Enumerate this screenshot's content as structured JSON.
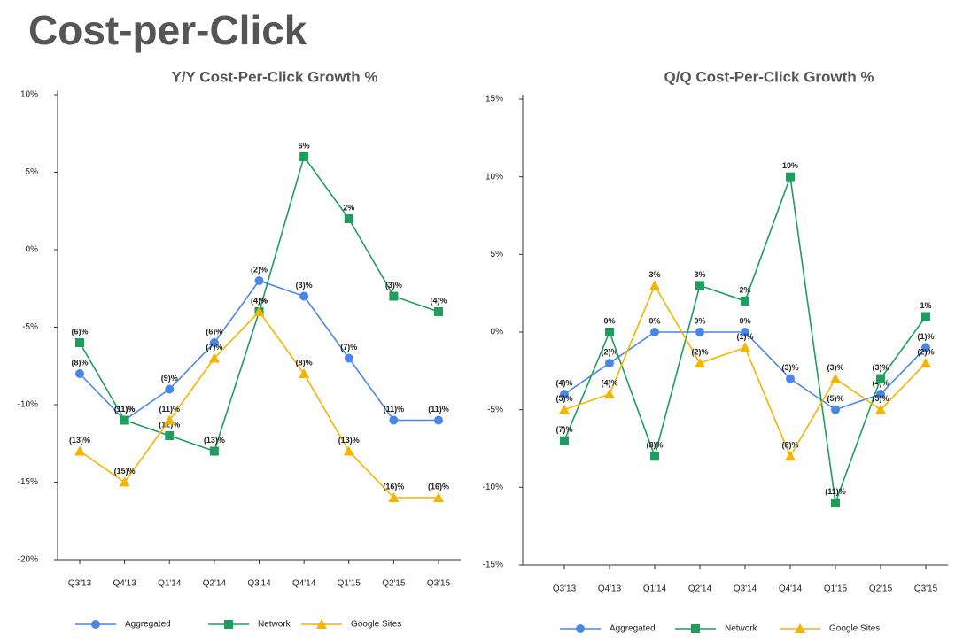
{
  "title": "Cost-per-Click",
  "chart_data": [
    {
      "type": "line",
      "title": "Y/Y Cost-Per-Click Growth %",
      "categories": [
        "Q3'13",
        "Q4'13",
        "Q1'14",
        "Q2'14",
        "Q3'14",
        "Q4'14",
        "Q1'15",
        "Q2'15",
        "Q3'15"
      ],
      "ylim": [
        -20,
        10
      ],
      "yticks": [
        {
          "value": 10,
          "label": "10%"
        },
        {
          "value": 5,
          "label": "5%"
        },
        {
          "value": 0,
          "label": "0%"
        },
        {
          "value": -5,
          "label": "-5%"
        },
        {
          "value": -10,
          "label": "-10%"
        },
        {
          "value": -15,
          "label": "-15%"
        },
        {
          "value": -20,
          "label": "-20%"
        }
      ],
      "legend": "bottom",
      "series": [
        {
          "name": "Aggregated",
          "color": "#4a86e8",
          "marker": "circle",
          "values": [
            -8,
            -11,
            -9,
            -6,
            -2,
            -3,
            -7,
            -11,
            -11
          ],
          "value_labels": [
            "(8)%",
            "(11)%",
            "(9)%",
            "(6)%",
            "(2)%",
            "(3)%",
            "(7)%",
            "(11)%",
            "(11)%"
          ]
        },
        {
          "name": "Network",
          "color": "#1e9e5c",
          "marker": "square",
          "values": [
            -6,
            -11,
            -12,
            -13,
            -4,
            6,
            2,
            -3,
            -4
          ],
          "value_labels": [
            "(6)%",
            "(11)%",
            "(12)%",
            "(13)%",
            "(4)%",
            "6%",
            "2%",
            "(3)%",
            "(4)%"
          ]
        },
        {
          "name": "Google Sites",
          "color": "#f4b400",
          "marker": "triangle",
          "values": [
            -13,
            -15,
            -11,
            -7,
            -4,
            -8,
            -13,
            -16,
            -16
          ],
          "value_labels": [
            "(13)%",
            "(15)%",
            "(11)%",
            "(7)%",
            "(4)%",
            "(8)%",
            "(13)%",
            "(16)%",
            "(16)%"
          ]
        }
      ]
    },
    {
      "type": "line",
      "title": "Q/Q Cost-Per-Click Growth %",
      "categories": [
        "Q3'13",
        "Q4'13",
        "Q1'14",
        "Q2'14",
        "Q3'14",
        "Q4'14",
        "Q1'15",
        "Q2'15",
        "Q3'15"
      ],
      "ylim": [
        -15,
        15
      ],
      "yticks": [
        {
          "value": 15,
          "label": "15%"
        },
        {
          "value": 10,
          "label": "10%"
        },
        {
          "value": 5,
          "label": "5%"
        },
        {
          "value": 0,
          "label": "0%"
        },
        {
          "value": -5,
          "label": "-5%"
        },
        {
          "value": -10,
          "label": "-10%"
        },
        {
          "value": -15,
          "label": "-15%"
        }
      ],
      "legend": "bottom",
      "series": [
        {
          "name": "Aggregated",
          "color": "#4a86e8",
          "marker": "circle",
          "values": [
            -4,
            -2,
            0,
            0,
            0,
            -3,
            -5,
            -4,
            -1
          ],
          "value_labels": [
            "(4)%",
            "(2)%",
            "0%",
            "0%",
            "0%",
            "(3)%",
            "(5)%",
            "(4)%",
            "(1)%"
          ]
        },
        {
          "name": "Network",
          "color": "#1e9e5c",
          "marker": "square",
          "values": [
            -7,
            0,
            -8,
            3,
            2,
            10,
            -11,
            -3,
            1
          ],
          "value_labels": [
            "(7)%",
            "0%",
            "(8)%",
            "3%",
            "2%",
            "10%",
            "(11)%",
            "(3)%",
            "1%"
          ]
        },
        {
          "name": "Google Sites",
          "color": "#f4b400",
          "marker": "triangle",
          "values": [
            -5,
            -4,
            3,
            -2,
            -1,
            -8,
            -3,
            -5,
            -2
          ],
          "value_labels": [
            "(5)%",
            "(4)%",
            "3%",
            "(2)%",
            "(1)%",
            "(8)%",
            "(3)%",
            "(5)%",
            "(2)%"
          ]
        }
      ]
    }
  ]
}
